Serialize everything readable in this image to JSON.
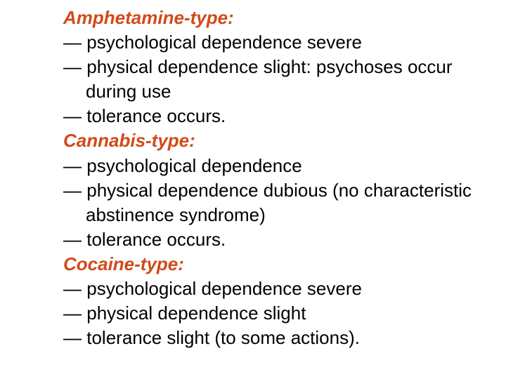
{
  "slide": {
    "background_color": "#ffffff",
    "text_color": "#000000",
    "heading_color": "#d24a1a",
    "font_family": "Arial",
    "font_size_pt": 20,
    "line_height": 1.35,
    "sections": [
      {
        "heading": "Amphetamine-type:",
        "items": [
          {
            "bullet": "—",
            "text": "psychological dependence severe"
          },
          {
            "bullet": "—",
            "text": "physical dependence slight: psychoses occur",
            "cont": [
              "during use"
            ]
          },
          {
            "bullet": "—",
            "text": "tolerance occurs."
          }
        ]
      },
      {
        "heading": "Cannabis-type:",
        "items": [
          {
            "bullet": "—",
            "text": "psychological dependence"
          },
          {
            "bullet": "—",
            "text": "physical dependence dubious (no characteristic",
            "cont": [
              "abstinence syndrome)"
            ]
          },
          {
            "bullet": "—",
            "text": "tolerance occurs."
          }
        ]
      },
      {
        "heading": "Cocaine-type:",
        "items": [
          {
            "bullet": "—",
            "text": "psychological dependence severe"
          },
          {
            "bullet": "—",
            "text": "physical dependence slight"
          },
          {
            "bullet": "—",
            "text": "tolerance slight (to some actions)."
          }
        ]
      }
    ]
  }
}
